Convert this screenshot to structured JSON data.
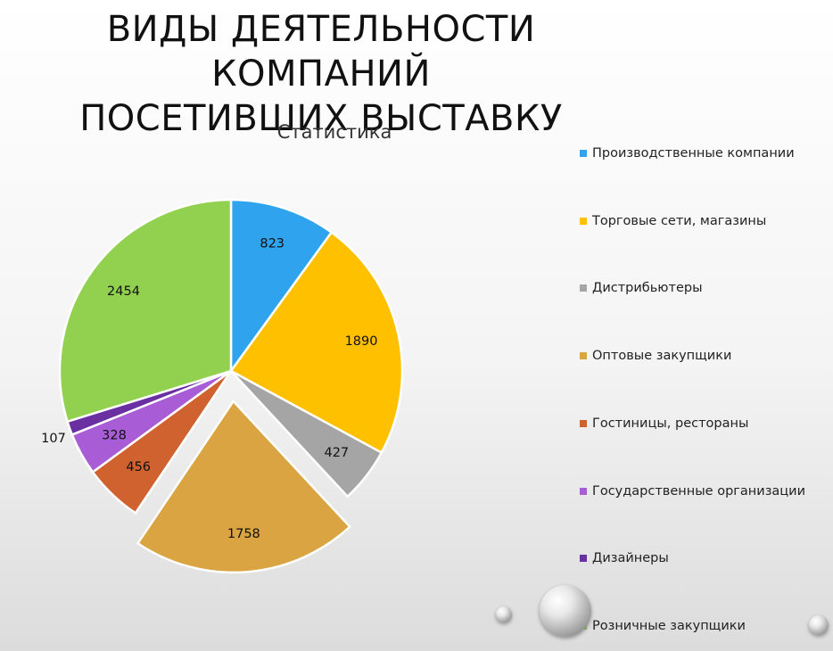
{
  "slide": {
    "title_line1": "ВИДЫ ДЕЯТЕЛЬНОСТИ КОМПАНИЙ",
    "title_line2": "ПОСЕТИВШИХ ВЫСТАВКУ"
  },
  "chart_data": {
    "type": "pie",
    "title": "Статистика",
    "legend_position": "right",
    "exploded_category": "Оптовые закупщики",
    "categories": [
      "Производственные компании",
      "Торговые сети, магазины",
      "Дистрибьютеры",
      "Оптовые закупщики",
      "Гостиницы, рестораны",
      "Государственные организации",
      "Дизайнеры",
      "Розничные закупщики"
    ],
    "values": [
      823,
      1890,
      427,
      1758,
      456,
      328,
      107,
      2454
    ],
    "colors": [
      "#2FA3EE",
      "#FFC000",
      "#A5A5A5",
      "#D9A441",
      "#D0622F",
      "#A85CD6",
      "#6A2FA0",
      "#92D050"
    ]
  }
}
